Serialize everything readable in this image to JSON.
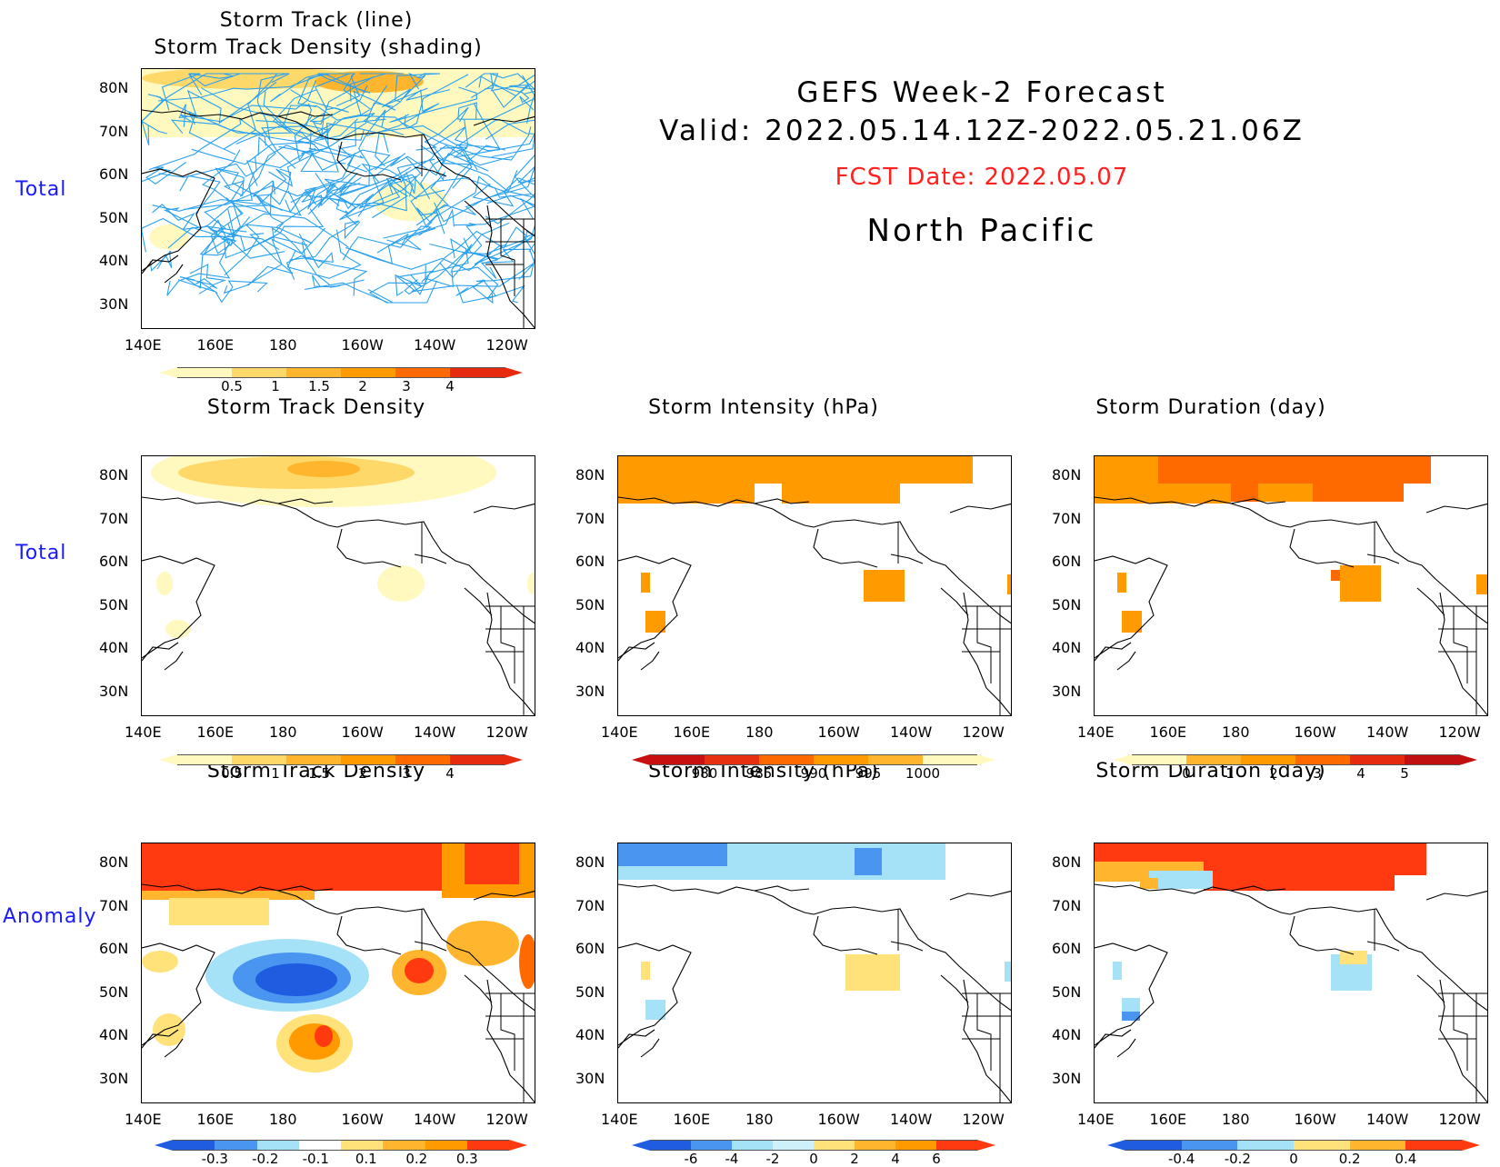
{
  "header": {
    "line1": "GEFS Week-2 Forecast",
    "line2": "Valid: 2022.05.14.12Z-2022.05.21.06Z",
    "fcst": "FCST Date: 2022.05.07",
    "region": "North Pacific"
  },
  "row_labels": {
    "total1": "Total",
    "total2": "Total",
    "anomaly": "Anomaly"
  },
  "axes": {
    "lat_labels": [
      "80N",
      "70N",
      "60N",
      "50N",
      "40N",
      "30N"
    ],
    "lon_labels": [
      "140E",
      "160E",
      "180",
      "160W",
      "140W",
      "120W"
    ]
  },
  "panels": {
    "p1": {
      "title_line1": "Storm Track (line)",
      "title_line2": "Storm Track Density (shading)"
    },
    "p2": {
      "title": "Storm Track Density"
    },
    "p3": {
      "title": "Storm Intensity (hPa)"
    },
    "p4": {
      "title": "Storm Duration (day)"
    },
    "p5": {
      "title": "Storm Track Density"
    },
    "p6": {
      "title": "Storm Intensity (hPa)"
    },
    "p7": {
      "title": "Storm Duration (day)"
    }
  },
  "colorbars": {
    "density": {
      "ticks": [
        "0.5",
        "1",
        "1.5",
        "2",
        "3",
        "4"
      ],
      "colors": [
        "#fff9c0",
        "#ffd86a",
        "#ffb52e",
        "#ff9a00",
        "#ff6a00",
        "#e52a10"
      ]
    },
    "intensity": {
      "ticks": [
        "980",
        "985",
        "990",
        "995",
        "1000"
      ],
      "colors": [
        "#c81010",
        "#e63010",
        "#ff6a00",
        "#ff9a00",
        "#ffb52e",
        "#fff9c0"
      ]
    },
    "duration": {
      "ticks": [
        "0",
        "1",
        "2",
        "3",
        "4",
        "5"
      ],
      "colors": [
        "#fff9c0",
        "#ffb52e",
        "#ff9a00",
        "#ff6a00",
        "#e52a10",
        "#c01010"
      ]
    },
    "anom_density": {
      "ticks": [
        "-0.3",
        "-0.2",
        "-0.1",
        "0.1",
        "0.2",
        "0.3"
      ],
      "colors": [
        "#1f5ce0",
        "#4a95ef",
        "#a6e2f7",
        "#ffffff",
        "#ffe27a",
        "#ffb52e",
        "#ff9a00",
        "#ff3a10"
      ]
    },
    "anom_intensity": {
      "ticks": [
        "-6",
        "-4",
        "-2",
        "0",
        "2",
        "4",
        "6"
      ],
      "colors": [
        "#1f5ce0",
        "#4a95ef",
        "#a6e2f7",
        "#cdf0fa",
        "#ffe27a",
        "#ffb52e",
        "#ff9a00",
        "#ff3a10"
      ]
    },
    "anom_duration": {
      "ticks": [
        "-0.4",
        "-0.2",
        "0",
        "0.2",
        "0.4"
      ],
      "colors": [
        "#1f5ce0",
        "#4a95ef",
        "#a6e2f7",
        "#ffe27a",
        "#ffb52e",
        "#ff3a10"
      ]
    }
  }
}
